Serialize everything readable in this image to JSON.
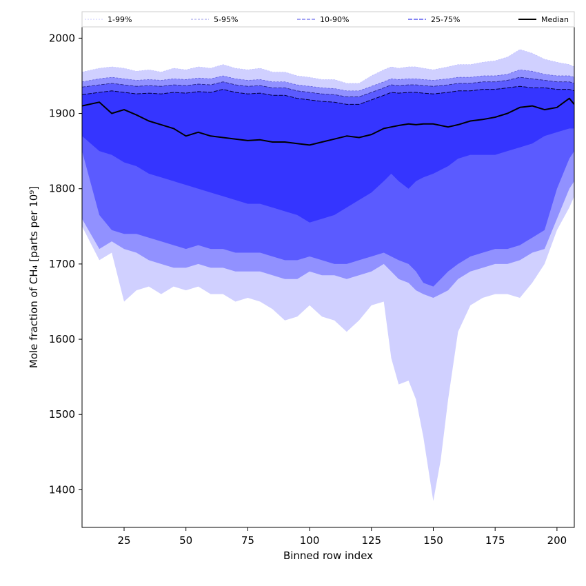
{
  "chart_data": {
    "type": "area",
    "title": "",
    "xlabel": "Binned row index",
    "ylabel": "Mole fraction of CH₄ [parts per 10⁹]",
    "xlim": [
      8,
      207
    ],
    "ylim": [
      1350,
      2015
    ],
    "xticks": [
      25,
      50,
      75,
      100,
      125,
      150,
      175,
      200
    ],
    "yticks": [
      1400,
      1500,
      1600,
      1700,
      1800,
      1900,
      2000
    ],
    "legend": {
      "position": "top",
      "entries": [
        "1-99%",
        "5-95%",
        "10-90%",
        "25-75%",
        "Median"
      ]
    },
    "colors": {
      "band": "#2a2aff",
      "median": "#000000"
    },
    "x": [
      8,
      15,
      20,
      25,
      30,
      35,
      40,
      45,
      50,
      55,
      60,
      65,
      70,
      75,
      80,
      85,
      90,
      95,
      100,
      105,
      110,
      115,
      120,
      125,
      130,
      133,
      136,
      140,
      143,
      146,
      150,
      153,
      156,
      160,
      165,
      170,
      175,
      180,
      185,
      190,
      195,
      200,
      205,
      207
    ],
    "series": [
      {
        "name": "1-99%",
        "band": true,
        "lower": [
          1750,
          1705,
          1715,
          1650,
          1665,
          1670,
          1660,
          1670,
          1665,
          1670,
          1660,
          1660,
          1650,
          1655,
          1650,
          1640,
          1625,
          1630,
          1645,
          1630,
          1625,
          1610,
          1625,
          1645,
          1650,
          1575,
          1540,
          1545,
          1520,
          1470,
          1385,
          1440,
          1520,
          1610,
          1645,
          1655,
          1660,
          1660,
          1655,
          1675,
          1700,
          1745,
          1775,
          1790
        ],
        "upper": [
          1955,
          1960,
          1962,
          1960,
          1956,
          1958,
          1955,
          1960,
          1958,
          1962,
          1960,
          1965,
          1960,
          1958,
          1960,
          1955,
          1955,
          1950,
          1948,
          1945,
          1945,
          1940,
          1940,
          1950,
          1958,
          1962,
          1960,
          1962,
          1962,
          1960,
          1958,
          1960,
          1962,
          1965,
          1965,
          1968,
          1970,
          1975,
          1985,
          1980,
          1972,
          1968,
          1965,
          1962
        ]
      },
      {
        "name": "5-95%",
        "band": true,
        "lower": [
          1760,
          1720,
          1730,
          1720,
          1715,
          1705,
          1700,
          1695,
          1695,
          1700,
          1695,
          1695,
          1690,
          1690,
          1690,
          1685,
          1680,
          1680,
          1690,
          1685,
          1685,
          1680,
          1685,
          1690,
          1700,
          1690,
          1680,
          1675,
          1665,
          1660,
          1655,
          1660,
          1665,
          1680,
          1690,
          1695,
          1700,
          1700,
          1705,
          1715,
          1720,
          1760,
          1800,
          1810
        ],
        "upper": [
          1942,
          1946,
          1948,
          1946,
          1944,
          1945,
          1944,
          1946,
          1945,
          1947,
          1946,
          1950,
          1946,
          1944,
          1945,
          1942,
          1942,
          1938,
          1936,
          1934,
          1933,
          1930,
          1930,
          1936,
          1942,
          1946,
          1945,
          1946,
          1946,
          1945,
          1944,
          1945,
          1946,
          1948,
          1948,
          1950,
          1950,
          1952,
          1958,
          1956,
          1952,
          1950,
          1950,
          1948
        ]
      },
      {
        "name": "10-90%",
        "band": true,
        "lower": [
          1850,
          1765,
          1745,
          1740,
          1740,
          1735,
          1730,
          1725,
          1720,
          1725,
          1720,
          1720,
          1715,
          1715,
          1715,
          1710,
          1705,
          1705,
          1710,
          1705,
          1700,
          1700,
          1705,
          1710,
          1715,
          1710,
          1705,
          1700,
          1690,
          1675,
          1670,
          1680,
          1690,
          1700,
          1710,
          1715,
          1720,
          1720,
          1725,
          1735,
          1745,
          1800,
          1840,
          1850
        ],
        "upper": [
          1935,
          1938,
          1940,
          1938,
          1936,
          1937,
          1936,
          1938,
          1937,
          1939,
          1938,
          1942,
          1938,
          1936,
          1937,
          1934,
          1934,
          1930,
          1928,
          1926,
          1925,
          1922,
          1922,
          1928,
          1934,
          1938,
          1937,
          1938,
          1938,
          1937,
          1936,
          1937,
          1938,
          1940,
          1940,
          1942,
          1942,
          1944,
          1948,
          1946,
          1944,
          1942,
          1942,
          1940
        ]
      },
      {
        "name": "25-75%",
        "band": true,
        "lower": [
          1870,
          1850,
          1845,
          1835,
          1830,
          1820,
          1815,
          1810,
          1805,
          1800,
          1795,
          1790,
          1785,
          1780,
          1780,
          1775,
          1770,
          1765,
          1755,
          1760,
          1765,
          1775,
          1785,
          1795,
          1810,
          1820,
          1810,
          1800,
          1810,
          1815,
          1820,
          1825,
          1830,
          1840,
          1845,
          1845,
          1845,
          1850,
          1855,
          1860,
          1870,
          1875,
          1880,
          1880
        ],
        "upper": [
          1925,
          1928,
          1930,
          1928,
          1926,
          1927,
          1926,
          1928,
          1927,
          1929,
          1928,
          1932,
          1928,
          1926,
          1927,
          1924,
          1924,
          1920,
          1918,
          1916,
          1915,
          1912,
          1912,
          1918,
          1924,
          1928,
          1927,
          1928,
          1928,
          1927,
          1926,
          1927,
          1928,
          1930,
          1930,
          1932,
          1932,
          1934,
          1936,
          1934,
          1934,
          1932,
          1932,
          1930
        ]
      },
      {
        "name": "Median",
        "band": false,
        "values": [
          1910,
          1915,
          1900,
          1905,
          1898,
          1890,
          1885,
          1880,
          1870,
          1875,
          1870,
          1868,
          1866,
          1864,
          1865,
          1862,
          1862,
          1860,
          1858,
          1862,
          1866,
          1870,
          1868,
          1872,
          1880,
          1882,
          1884,
          1886,
          1885,
          1886,
          1886,
          1884,
          1882,
          1885,
          1890,
          1892,
          1895,
          1900,
          1908,
          1910,
          1905,
          1908,
          1920,
          1912
        ]
      }
    ]
  }
}
